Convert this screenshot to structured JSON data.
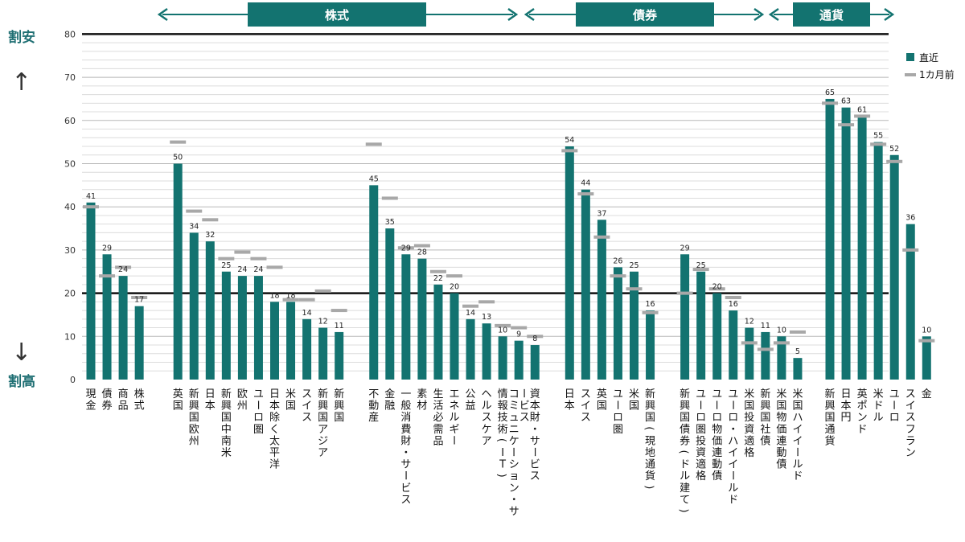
{
  "side_labels": {
    "top": "割安",
    "bottom": "割高",
    "up_arrow": "↑",
    "down_arrow": "↓"
  },
  "groups": [
    {
      "label": "株式",
      "from_index": 4,
      "to_index": 21
    },
    {
      "label": "債券",
      "from_index": 22,
      "to_index": 35
    },
    {
      "label": "通貨",
      "from_index": 36,
      "to_index": 42
    }
  ],
  "legend": [
    {
      "key": "recent",
      "label": "直近"
    },
    {
      "key": "prev",
      "label": "1カ月前"
    }
  ],
  "colors": {
    "bar": "#137370",
    "marker": "#a8a8a8",
    "banner": "#137370",
    "gridline": "#c8c8c8",
    "refline": "#111111"
  },
  "chart_data": {
    "type": "bar",
    "ylim": [
      0,
      80
    ],
    "yticks": [
      0,
      10,
      20,
      30,
      40,
      50,
      60,
      70,
      80
    ],
    "reference_lines": [
      20,
      80
    ],
    "legend_position": "right",
    "categories": [
      "現金",
      "債券",
      "商品",
      "株式",
      "英国",
      "新興国欧州",
      "日本",
      "新興国中南米",
      "欧州",
      "ユーロ圏",
      "日本除く太平洋",
      "米国",
      "スイス",
      "新興国アジア",
      "新興国",
      "不動産",
      "金融",
      "一般消費財・サービス",
      "素材",
      "生活必需品",
      "エネルギー",
      "公益",
      "ヘルスケア",
      "情報技術(IT)",
      "コミュニケーション・サービス",
      "資本財・サービス",
      "日本",
      "スイス",
      "英国",
      "ユーロ圏",
      "米国",
      "新興国(現地通貨)",
      "新興国債券(ドル建て)",
      "ユーロ圏投資適格",
      "ユーロ物価連動債",
      "ユーロ・ハイイールド",
      "米国投資適格",
      "新興国社債",
      "米国物価連動債",
      "米国ハイイールド",
      "新興国通貨",
      "日本円",
      "英ポンド",
      "米ドル",
      "ユーロ",
      "スイスフラン",
      "金"
    ],
    "series": [
      {
        "name": "直近",
        "values": [
          41,
          29,
          24,
          17,
          50,
          34,
          32,
          25,
          24,
          24,
          18,
          18,
          14,
          12,
          11,
          45,
          35,
          29,
          28,
          22,
          20,
          14,
          13,
          10,
          9,
          8,
          54,
          44,
          37,
          26,
          25,
          16,
          29,
          25,
          20,
          16,
          12,
          11,
          10,
          5,
          65,
          63,
          61,
          55,
          52,
          36,
          10
        ]
      },
      {
        "name": "1カ月前",
        "values": [
          40,
          24,
          26,
          19,
          55,
          39,
          37,
          28,
          29.5,
          28,
          26,
          18.5,
          18.5,
          20.5,
          16,
          54.5,
          42,
          30.5,
          31,
          25,
          24,
          17,
          18,
          12.5,
          12,
          10,
          53,
          43,
          33,
          24,
          21,
          15.5,
          20,
          25.5,
          21,
          19,
          8.5,
          7,
          8.5,
          11,
          64,
          59,
          61,
          54.5,
          50.5,
          30,
          9
        ]
      }
    ],
    "data_labels": [
      "41",
      "29",
      "24",
      "17",
      "50",
      "34",
      "32",
      "25",
      "24",
      "24",
      "18",
      "18",
      "14",
      "12",
      "11",
      "45",
      "35",
      "29",
      "28",
      "22",
      "20",
      "14",
      "13",
      "10",
      "9",
      "8",
      "54",
      "44",
      "37",
      "26",
      "25",
      "16",
      "29",
      "25",
      "20",
      "16",
      "12",
      "11",
      "10",
      "5",
      "65",
      "63",
      "61",
      "55",
      "52",
      "36",
      "10"
    ]
  }
}
